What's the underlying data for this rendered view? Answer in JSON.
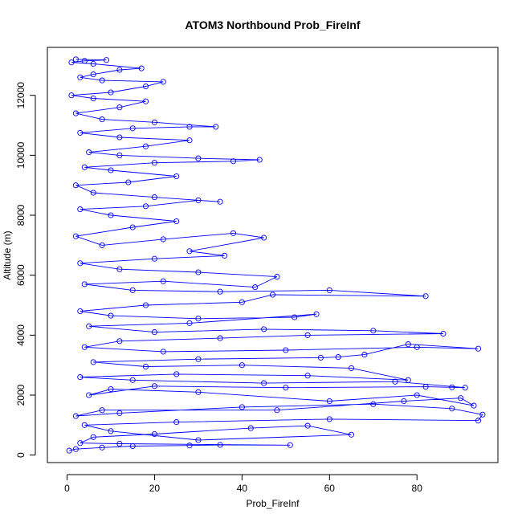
{
  "chart_data": {
    "type": "scatter",
    "title": "ATOM3 Northbound Prob_FireInf",
    "xlabel": "Prob_FireInf",
    "ylabel": "Altitude (m)",
    "xlim": [
      -4.5,
      98.5
    ],
    "ylim": [
      -250,
      13600
    ],
    "x_ticks": [
      0,
      20,
      40,
      60,
      80
    ],
    "y_ticks": [
      0,
      2000,
      4000,
      6000,
      8000,
      10000,
      12000
    ],
    "x_tick_labels": [
      "0",
      "20",
      "40",
      "60",
      "80"
    ],
    "y_tick_labels": [
      "0",
      "2000",
      "4000",
      "6000",
      "8000",
      "10000",
      "12000"
    ],
    "grid": false,
    "legend": "none",
    "markers": "open circles joined by lines",
    "colors": {
      "series": "#0000ff",
      "axes": "#000000",
      "background": "#ffffff"
    },
    "series": [
      {
        "mode": "lines+markers",
        "points": [
          [
            0.5,
            150
          ],
          [
            2.0,
            200
          ],
          [
            8.0,
            250
          ],
          [
            15.0,
            300
          ],
          [
            28.0,
            320
          ],
          [
            35.0,
            340
          ],
          [
            51.0,
            330
          ],
          [
            12.0,
            380
          ],
          [
            3.0,
            400
          ],
          [
            6.0,
            600
          ],
          [
            20.0,
            700
          ],
          [
            42.0,
            900
          ],
          [
            55.0,
            980
          ],
          [
            65.0,
            680
          ],
          [
            30.0,
            500
          ],
          [
            10.0,
            800
          ],
          [
            4.0,
            1000
          ],
          [
            25.0,
            1100
          ],
          [
            60.0,
            1200
          ],
          [
            94.0,
            1150
          ],
          [
            95.0,
            1350
          ],
          [
            88.0,
            1550
          ],
          [
            70.0,
            1700
          ],
          [
            40.0,
            1600
          ],
          [
            12.0,
            1400
          ],
          [
            2.0,
            1300
          ],
          [
            8.0,
            1500
          ],
          [
            48.0,
            1500
          ],
          [
            77.0,
            1800
          ],
          [
            90.0,
            1900
          ],
          [
            93.0,
            1650
          ],
          [
            80.0,
            2000
          ],
          [
            60.0,
            1800
          ],
          [
            30.0,
            2100
          ],
          [
            10.0,
            2200
          ],
          [
            5.0,
            2000
          ],
          [
            20.0,
            2300
          ],
          [
            50.0,
            2250
          ],
          [
            82.0,
            2280
          ],
          [
            88.0,
            2260
          ],
          [
            91.0,
            2250
          ],
          [
            75.0,
            2450
          ],
          [
            45.0,
            2400
          ],
          [
            15.0,
            2500
          ],
          [
            3.0,
            2600
          ],
          [
            25.0,
            2700
          ],
          [
            55.0,
            2650
          ],
          [
            78.0,
            2500
          ],
          [
            65.0,
            2900
          ],
          [
            40.0,
            3000
          ],
          [
            18.0,
            2950
          ],
          [
            6.0,
            3100
          ],
          [
            30.0,
            3200
          ],
          [
            58.0,
            3250
          ],
          [
            62.0,
            3270
          ],
          [
            68.0,
            3350
          ],
          [
            78.0,
            3700
          ],
          [
            94.0,
            3550
          ],
          [
            80.0,
            3600
          ],
          [
            50.0,
            3500
          ],
          [
            22.0,
            3450
          ],
          [
            4.0,
            3600
          ],
          [
            12.0,
            3800
          ],
          [
            35.0,
            3900
          ],
          [
            55.0,
            4000
          ],
          [
            86.0,
            4050
          ],
          [
            70.0,
            4150
          ],
          [
            45.0,
            4200
          ],
          [
            20.0,
            4100
          ],
          [
            5.0,
            4300
          ],
          [
            28.0,
            4400
          ],
          [
            57.0,
            4700
          ],
          [
            52.0,
            4600
          ],
          [
            30.0,
            4550
          ],
          [
            10.0,
            4650
          ],
          [
            3.0,
            4800
          ],
          [
            18.0,
            5000
          ],
          [
            40.0,
            5100
          ],
          [
            47.0,
            5350
          ],
          [
            82.0,
            5300
          ],
          [
            60.0,
            5500
          ],
          [
            35.0,
            5450
          ],
          [
            15.0,
            5500
          ],
          [
            4.0,
            5700
          ],
          [
            22.0,
            5800
          ],
          [
            43.0,
            5600
          ],
          [
            48.0,
            5950
          ],
          [
            30.0,
            6100
          ],
          [
            12.0,
            6200
          ],
          [
            3.0,
            6400
          ],
          [
            20.0,
            6550
          ],
          [
            36.0,
            6650
          ],
          [
            28.0,
            6800
          ],
          [
            45.0,
            7250
          ],
          [
            38.0,
            7400
          ],
          [
            22.0,
            7200
          ],
          [
            8.0,
            7000
          ],
          [
            2.0,
            7300
          ],
          [
            15.0,
            7600
          ],
          [
            25.0,
            7800
          ],
          [
            10.0,
            8000
          ],
          [
            3.0,
            8200
          ],
          [
            18.0,
            8300
          ],
          [
            30.0,
            8500
          ],
          [
            35.0,
            8450
          ],
          [
            20.0,
            8600
          ],
          [
            6.0,
            8750
          ],
          [
            2.0,
            9000
          ],
          [
            14.0,
            9100
          ],
          [
            25.0,
            9300
          ],
          [
            10.0,
            9500
          ],
          [
            4.0,
            9600
          ],
          [
            20.0,
            9750
          ],
          [
            38.0,
            9800
          ],
          [
            44.0,
            9850
          ],
          [
            30.0,
            9900
          ],
          [
            12.0,
            10000
          ],
          [
            5.0,
            10100
          ],
          [
            18.0,
            10300
          ],
          [
            28.0,
            10500
          ],
          [
            12.0,
            10600
          ],
          [
            3.0,
            10750
          ],
          [
            15.0,
            10900
          ],
          [
            28.0,
            10950
          ],
          [
            34.0,
            10950
          ],
          [
            20.0,
            11100
          ],
          [
            8.0,
            11200
          ],
          [
            2.0,
            11400
          ],
          [
            12.0,
            11600
          ],
          [
            18.0,
            11800
          ],
          [
            6.0,
            11900
          ],
          [
            1.0,
            12000
          ],
          [
            10.0,
            12100
          ],
          [
            18.0,
            12300
          ],
          [
            22.0,
            12450
          ],
          [
            8.0,
            12500
          ],
          [
            3.0,
            12600
          ],
          [
            6.0,
            12700
          ],
          [
            12.0,
            12850
          ],
          [
            17.0,
            12900
          ],
          [
            6.0,
            13050
          ],
          [
            1.0,
            13100
          ],
          [
            4.0,
            13150
          ],
          [
            9.0,
            13180
          ],
          [
            2.0,
            13200
          ]
        ]
      }
    ]
  }
}
